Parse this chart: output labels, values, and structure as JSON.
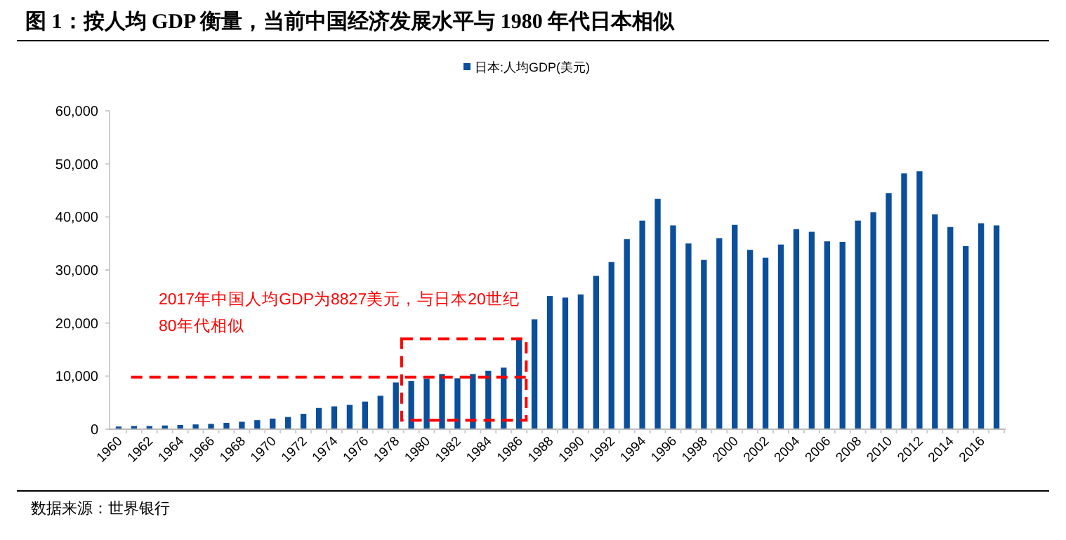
{
  "chart_data": {
    "type": "bar",
    "title": "图 1：按人均 GDP 衡量，当前中国经济发展水平与 1980 年代日本相似",
    "categories": [
      "1960",
      null,
      "1962",
      null,
      "1964",
      null,
      "1966",
      null,
      "1968",
      null,
      "1970",
      null,
      "1972",
      null,
      "1974",
      null,
      "1976",
      null,
      "1978",
      null,
      "1980",
      null,
      "1982",
      null,
      "1984",
      null,
      "1986",
      null,
      "1988",
      null,
      "1990",
      null,
      "1992",
      null,
      "1994",
      null,
      "1996",
      null,
      "1998",
      null,
      "2000",
      null,
      "2002",
      null,
      "2004",
      null,
      "2006",
      null,
      "2008",
      null,
      "2010",
      null,
      "2012",
      null,
      "2014",
      null,
      "2016",
      null
    ],
    "series": [
      {
        "name": "日本:人均GDP(美元)",
        "color": "#0b4f9c",
        "values": [
          500,
          600,
          600,
          700,
          800,
          900,
          1000,
          1200,
          1400,
          1700,
          2000,
          2300,
          2900,
          4000,
          4300,
          4600,
          5200,
          6300,
          8800,
          9100,
          9500,
          10400,
          9600,
          10400,
          11000,
          11600,
          17100,
          20700,
          25100,
          24800,
          25400,
          28900,
          31500,
          35800,
          39300,
          43400,
          38400,
          35000,
          31900,
          36000,
          38500,
          33800,
          32300,
          34800,
          37700,
          37200,
          35400,
          35300,
          39300,
          40900,
          44500,
          48200,
          48600,
          40500,
          38100,
          34500,
          38800,
          38400
        ]
      }
    ],
    "ylim": [
      0,
      60000
    ],
    "yticks": [
      {
        "value": 0,
        "label": "0"
      },
      {
        "value": 10000,
        "label": "10,000"
      },
      {
        "value": 20000,
        "label": "20,000"
      },
      {
        "value": 30000,
        "label": "30,000"
      },
      {
        "value": 40000,
        "label": "40,000"
      },
      {
        "value": 50000,
        "label": "50,000"
      },
      {
        "value": 60000,
        "label": "60,000"
      }
    ],
    "grid": false,
    "legend": "top",
    "ref_lines": [
      {
        "axis": "y",
        "value": 9800,
        "color": "#ff0000",
        "line_style": "dashed"
      }
    ],
    "annotations": [
      "2017年中国人均GDP为8827美元，与日本20世纪80年代相似",
      "数据来源：世界银行"
    ]
  }
}
